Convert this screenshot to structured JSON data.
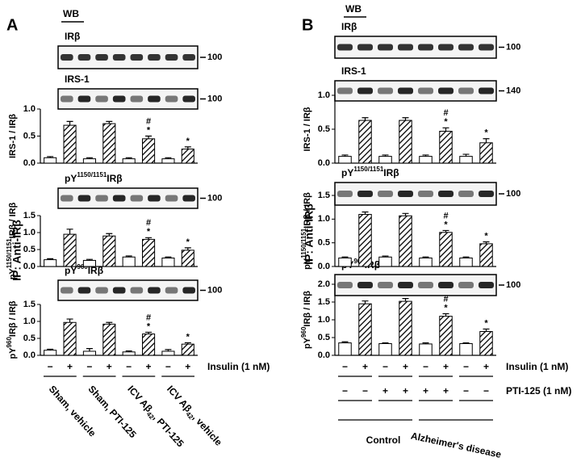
{
  "panels": [
    {
      "letter": "A",
      "wb": "WB",
      "ip": "IP: Anti-IRβ",
      "insulin": "Insulin (1 nM)",
      "blots": [
        {
          "label": [
            "IRβ"
          ],
          "mw": "100"
        },
        {
          "label": [
            "IRS-1"
          ],
          "mw": "100"
        },
        {
          "label": [
            "pY",
            "1150/1151",
            "IRβ"
          ],
          "mw": "100"
        },
        {
          "label": [
            "pY",
            "960",
            "IRβ"
          ],
          "mw": "100"
        }
      ],
      "groups": [
        [
          "Sham, vehicle"
        ],
        [
          "Sham, PTI-125"
        ],
        [
          "ICV Aβ",
          "42",
          ", PTI-125"
        ],
        [
          "ICV Aβ",
          "42",
          ", vehicle"
        ]
      ]
    },
    {
      "letter": "B",
      "wb": "WB",
      "ip": "IP: Anti-IRβ",
      "insulin": "Insulin (1 nM)",
      "blots": [
        {
          "label": [
            "IRβ"
          ],
          "mw": "100"
        },
        {
          "label": [
            "IRS-1"
          ],
          "mw": "140"
        },
        {
          "label": [
            "pY",
            "1150/1151",
            "IRβ"
          ],
          "mw": "100"
        },
        {
          "label": [
            "pY",
            "960",
            "IRβ"
          ],
          "mw": "100"
        }
      ],
      "pti_label": "PTI-125 (1 nM)",
      "pti": [
        "−",
        "−",
        "+",
        "+",
        "+",
        "+",
        "−",
        "−"
      ],
      "groups": [
        "Control",
        "Alzheimer's disease"
      ]
    }
  ],
  "chart_data": [
    {
      "type": "bar",
      "ylabel": [
        "IRS-1 / IRβ"
      ],
      "categories": [
        null,
        null,
        null,
        null,
        null,
        null,
        null,
        null
      ],
      "values": [
        0.1,
        0.7,
        0.08,
        0.73,
        0.08,
        0.45,
        0.08,
        0.26
      ],
      "errors": [
        0.02,
        0.07,
        0.02,
        0.04,
        0.02,
        0.05,
        0.02,
        0.04
      ],
      "patterns": [
        "plain",
        "hatch",
        "plain",
        "hatch",
        "plain",
        "hatch",
        "plain",
        "hatch"
      ],
      "annotations": [
        [],
        [],
        [],
        [],
        [],
        [
          "#",
          "*"
        ],
        [],
        [
          "*"
        ]
      ],
      "ylim": [
        0,
        1
      ],
      "yticks": [
        {
          "value": 0,
          "label": "0.0"
        },
        {
          "value": 0.5,
          "label": "0.5"
        },
        {
          "value": 1,
          "label": "1.0"
        }
      ]
    },
    {
      "type": "bar",
      "ylabel": [
        "pY",
        "1150/1151",
        "IRβ / IRβ"
      ],
      "categories": [
        null,
        null,
        null,
        null,
        null,
        null,
        null,
        null
      ],
      "values": [
        0.2,
        0.95,
        0.18,
        0.9,
        0.28,
        0.8,
        0.25,
        0.48
      ],
      "errors": [
        0.03,
        0.15,
        0.03,
        0.07,
        0.03,
        0.05,
        0.03,
        0.07
      ],
      "patterns": [
        "plain",
        "hatch",
        "plain",
        "hatch",
        "plain",
        "hatch",
        "plain",
        "hatch"
      ],
      "annotations": [
        [],
        [],
        [],
        [],
        [],
        [
          "#",
          "*"
        ],
        [],
        [
          "*"
        ]
      ],
      "ylim": [
        0,
        1.5
      ],
      "yticks": [
        {
          "value": 0,
          "label": "0.0"
        },
        {
          "value": 0.5,
          "label": "0.5"
        },
        {
          "value": 1,
          "label": "1.0"
        },
        1.5
      ]
    },
    {
      "type": "bar",
      "ylabel": [
        "pY",
        "960",
        "IRβ / IRβ"
      ],
      "categories": [
        "−",
        "+",
        "−",
        "+",
        "−",
        "+",
        "−",
        "+"
      ],
      "values": [
        0.15,
        0.97,
        0.12,
        0.92,
        0.1,
        0.63,
        0.12,
        0.33
      ],
      "errors": [
        0.03,
        0.1,
        0.08,
        0.05,
        0.03,
        0.05,
        0.05,
        0.04
      ],
      "patterns": [
        "plain",
        "hatch",
        "plain",
        "hatch",
        "plain",
        "hatch",
        "plain",
        "hatch"
      ],
      "annotations": [
        [],
        [],
        [],
        [],
        [],
        [
          "#",
          "*"
        ],
        [],
        [
          "*"
        ]
      ],
      "ylim": [
        0,
        1.5
      ],
      "yticks": [
        {
          "value": 0,
          "label": "0.0"
        },
        {
          "value": 0.5,
          "label": "0.5"
        },
        {
          "value": 1,
          "label": "1.0"
        },
        1.5
      ]
    },
    {
      "type": "bar",
      "ylabel": [
        "IRS-1 / IRβ"
      ],
      "categories": [
        null,
        null,
        null,
        null,
        null,
        null,
        null,
        null
      ],
      "values": [
        0.1,
        0.63,
        0.1,
        0.63,
        0.1,
        0.47,
        0.1,
        0.3
      ],
      "errors": [
        0.02,
        0.04,
        0.02,
        0.04,
        0.02,
        0.05,
        0.03,
        0.06
      ],
      "patterns": [
        "plain",
        "hatch",
        "plain",
        "hatch",
        "plain",
        "hatch",
        "plain",
        "hatch"
      ],
      "annotations": [
        [],
        [],
        [],
        [],
        [],
        [
          "#",
          "*"
        ],
        [],
        [
          "*"
        ]
      ],
      "ylim": [
        0,
        1
      ],
      "yticks": [
        {
          "value": 0,
          "label": "0.0"
        },
        {
          "value": 0.5,
          "label": "0.5"
        },
        {
          "value": 1,
          "label": "1.0"
        }
      ]
    },
    {
      "type": "bar",
      "ylabel": [
        "pY",
        "1150/1151",
        "IRβ / IRβ"
      ],
      "categories": [
        null,
        null,
        null,
        null,
        null,
        null,
        null,
        null
      ],
      "values": [
        0.18,
        1.1,
        0.2,
        1.07,
        0.18,
        0.72,
        0.18,
        0.48
      ],
      "errors": [
        0.02,
        0.05,
        0.02,
        0.05,
        0.02,
        0.04,
        0.02,
        0.04
      ],
      "patterns": [
        "plain",
        "hatch",
        "plain",
        "hatch",
        "plain",
        "hatch",
        "plain",
        "hatch"
      ],
      "annotations": [
        [],
        [],
        [],
        [],
        [],
        [
          "#",
          "*"
        ],
        [],
        [
          "*"
        ]
      ],
      "ylim": [
        0,
        1.5
      ],
      "yticks": [
        {
          "value": 0,
          "label": "0.0"
        },
        {
          "value": 0.5,
          "label": "0.5"
        },
        {
          "value": 1,
          "label": "1.0"
        },
        1.5
      ]
    },
    {
      "type": "bar",
      "ylabel": [
        "pY",
        "960",
        "IRβ / IRβ"
      ],
      "categories": [
        "−",
        "+",
        "−",
        "+",
        "−",
        "+",
        "−",
        "+"
      ],
      "values": [
        0.35,
        1.45,
        0.33,
        1.52,
        0.32,
        1.1,
        0.33,
        0.67
      ],
      "errors": [
        0.03,
        0.08,
        0.02,
        0.08,
        0.03,
        0.07,
        0.02,
        0.07
      ],
      "patterns": [
        "plain",
        "hatch",
        "plain",
        "hatch",
        "plain",
        "hatch",
        "plain",
        "hatch"
      ],
      "annotations": [
        [],
        [],
        [],
        [],
        [],
        [
          "#",
          "*"
        ],
        [],
        [
          "*"
        ]
      ],
      "ylim": [
        0,
        2
      ],
      "yticks": [
        {
          "value": 0,
          "label": "0.0"
        },
        {
          "value": 0.5,
          "label": "0.5"
        },
        {
          "value": 1,
          "label": "1.0"
        },
        {
          "value": 1.5,
          "label": "1.5"
        },
        {
          "value": 2,
          "label": "2.0"
        }
      ]
    }
  ]
}
